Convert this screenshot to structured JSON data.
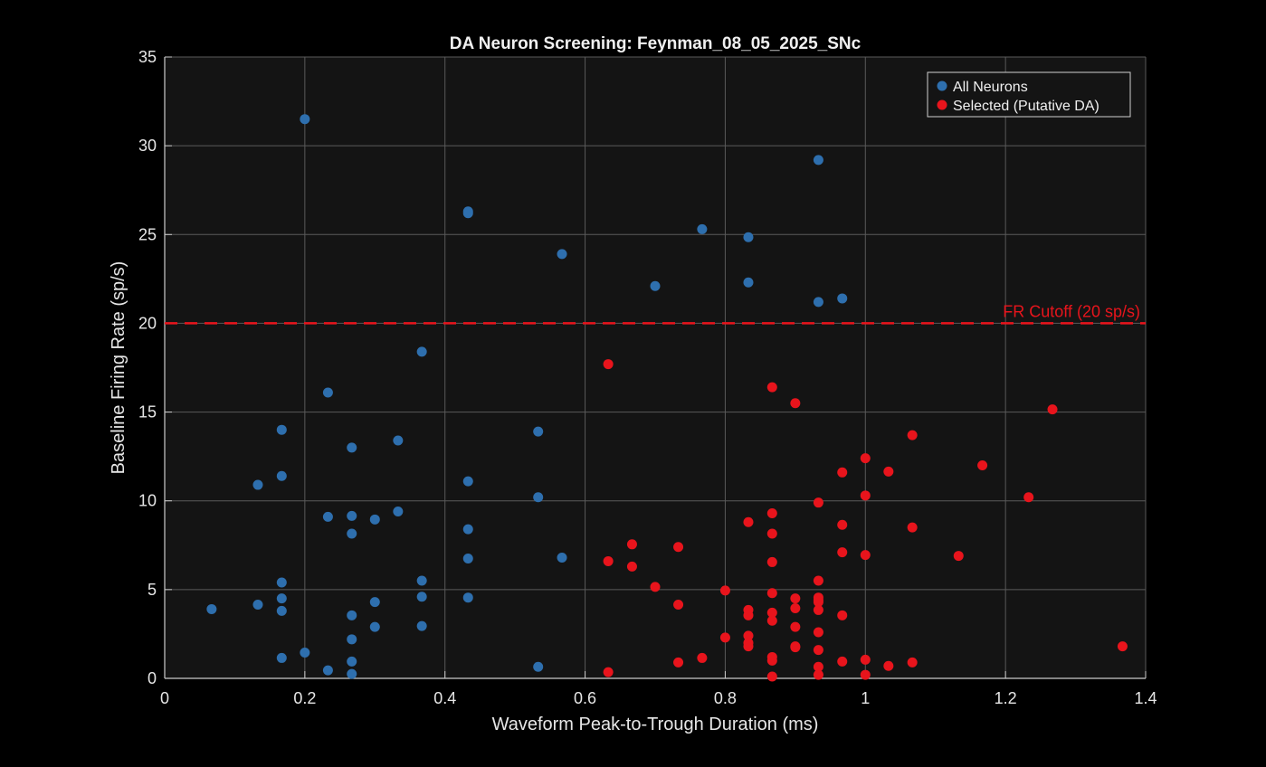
{
  "chart_data": {
    "type": "scatter",
    "title": "DA Neuron Screening: Feynman_08_05_2025_SNc",
    "xlabel": "Waveform Peak-to-Trough Duration (ms)",
    "ylabel": "Baseline Firing Rate (sp/s)",
    "xlim": [
      0,
      1.4
    ],
    "ylim": [
      0,
      35
    ],
    "xticks": [
      0,
      0.2,
      0.4,
      0.6,
      0.8,
      1,
      1.2,
      1.4
    ],
    "xtick_labels": [
      "0",
      "0.2",
      "0.4",
      "0.6",
      "0.8",
      "1",
      "1.2",
      "1.4"
    ],
    "yticks": [
      0,
      5,
      10,
      15,
      20,
      25,
      30,
      35
    ],
    "ytick_labels": [
      "0",
      "5",
      "10",
      "15",
      "20",
      "25",
      "30",
      "35"
    ],
    "grid": true,
    "background": "#141414",
    "grid_color": "#5a5a5a",
    "axis_color": "#cccccc",
    "legend_position": "top-right",
    "series": [
      {
        "name": "All Neurons",
        "color": "#2e6fae",
        "points": [
          [
            0.067,
            3.9
          ],
          [
            0.133,
            10.9
          ],
          [
            0.133,
            4.15
          ],
          [
            0.167,
            14.0
          ],
          [
            0.167,
            11.4
          ],
          [
            0.167,
            5.4
          ],
          [
            0.167,
            4.5
          ],
          [
            0.167,
            3.8
          ],
          [
            0.167,
            1.15
          ],
          [
            0.2,
            31.5
          ],
          [
            0.2,
            1.45
          ],
          [
            0.233,
            16.1
          ],
          [
            0.233,
            9.1
          ],
          [
            0.233,
            0.45
          ],
          [
            0.267,
            13.0
          ],
          [
            0.267,
            9.15
          ],
          [
            0.267,
            8.15
          ],
          [
            0.267,
            3.55
          ],
          [
            0.267,
            2.2
          ],
          [
            0.267,
            0.95
          ],
          [
            0.267,
            0.25
          ],
          [
            0.3,
            8.95
          ],
          [
            0.3,
            4.3
          ],
          [
            0.3,
            2.9
          ],
          [
            0.333,
            13.4
          ],
          [
            0.333,
            9.4
          ],
          [
            0.367,
            18.4
          ],
          [
            0.367,
            5.5
          ],
          [
            0.367,
            4.6
          ],
          [
            0.367,
            2.95
          ],
          [
            0.433,
            26.3
          ],
          [
            0.433,
            26.2
          ],
          [
            0.433,
            11.1
          ],
          [
            0.433,
            8.4
          ],
          [
            0.433,
            6.75
          ],
          [
            0.433,
            4.55
          ],
          [
            0.533,
            13.9
          ],
          [
            0.533,
            10.2
          ],
          [
            0.533,
            0.65
          ],
          [
            0.567,
            23.9
          ],
          [
            0.567,
            6.8
          ],
          [
            0.7,
            22.1
          ],
          [
            0.767,
            25.3
          ],
          [
            0.833,
            24.85
          ],
          [
            0.833,
            22.3
          ],
          [
            0.933,
            29.2
          ],
          [
            0.933,
            21.2
          ],
          [
            0.967,
            21.4
          ]
        ]
      },
      {
        "name": "Selected (Putative DA)",
        "color": "#e8141c",
        "points": [
          [
            0.633,
            17.7
          ],
          [
            0.633,
            6.6
          ],
          [
            0.633,
            0.35
          ],
          [
            0.667,
            7.55
          ],
          [
            0.667,
            6.3
          ],
          [
            0.7,
            5.15
          ],
          [
            0.733,
            7.4
          ],
          [
            0.733,
            4.15
          ],
          [
            0.733,
            0.9
          ],
          [
            0.767,
            1.15
          ],
          [
            0.8,
            4.95
          ],
          [
            0.8,
            2.3
          ],
          [
            0.833,
            8.8
          ],
          [
            0.833,
            3.85
          ],
          [
            0.833,
            3.55
          ],
          [
            0.833,
            2.4
          ],
          [
            0.833,
            2.0
          ],
          [
            0.833,
            1.8
          ],
          [
            0.867,
            16.4
          ],
          [
            0.867,
            9.3
          ],
          [
            0.867,
            8.15
          ],
          [
            0.867,
            6.55
          ],
          [
            0.867,
            4.8
          ],
          [
            0.867,
            3.7
          ],
          [
            0.867,
            3.25
          ],
          [
            0.867,
            1.2
          ],
          [
            0.867,
            1.0
          ],
          [
            0.867,
            0.1
          ],
          [
            0.9,
            15.5
          ],
          [
            0.9,
            4.5
          ],
          [
            0.9,
            3.95
          ],
          [
            0.9,
            2.9
          ],
          [
            0.9,
            1.8
          ],
          [
            0.9,
            1.75
          ],
          [
            0.933,
            9.9
          ],
          [
            0.933,
            5.5
          ],
          [
            0.933,
            4.55
          ],
          [
            0.933,
            4.4
          ],
          [
            0.933,
            4.3
          ],
          [
            0.933,
            3.85
          ],
          [
            0.933,
            2.6
          ],
          [
            0.933,
            1.6
          ],
          [
            0.933,
            0.65
          ],
          [
            0.933,
            0.2
          ],
          [
            0.967,
            11.6
          ],
          [
            0.967,
            8.65
          ],
          [
            0.967,
            7.1
          ],
          [
            0.967,
            3.55
          ],
          [
            0.967,
            0.95
          ],
          [
            1.0,
            12.4
          ],
          [
            1.0,
            10.3
          ],
          [
            1.0,
            6.95
          ],
          [
            1.0,
            1.05
          ],
          [
            1.0,
            0.2
          ],
          [
            1.033,
            11.65
          ],
          [
            1.033,
            0.7
          ],
          [
            1.067,
            13.7
          ],
          [
            1.067,
            8.5
          ],
          [
            1.067,
            0.9
          ],
          [
            1.133,
            6.9
          ],
          [
            1.167,
            12.0
          ],
          [
            1.233,
            10.2
          ],
          [
            1.267,
            15.15
          ],
          [
            1.367,
            1.8
          ]
        ]
      }
    ],
    "annotations": [
      {
        "type": "hline",
        "y": 20,
        "style": "dashed",
        "color": "#e8141c",
        "text": "FR Cutoff (20 sp/s)"
      }
    ]
  }
}
